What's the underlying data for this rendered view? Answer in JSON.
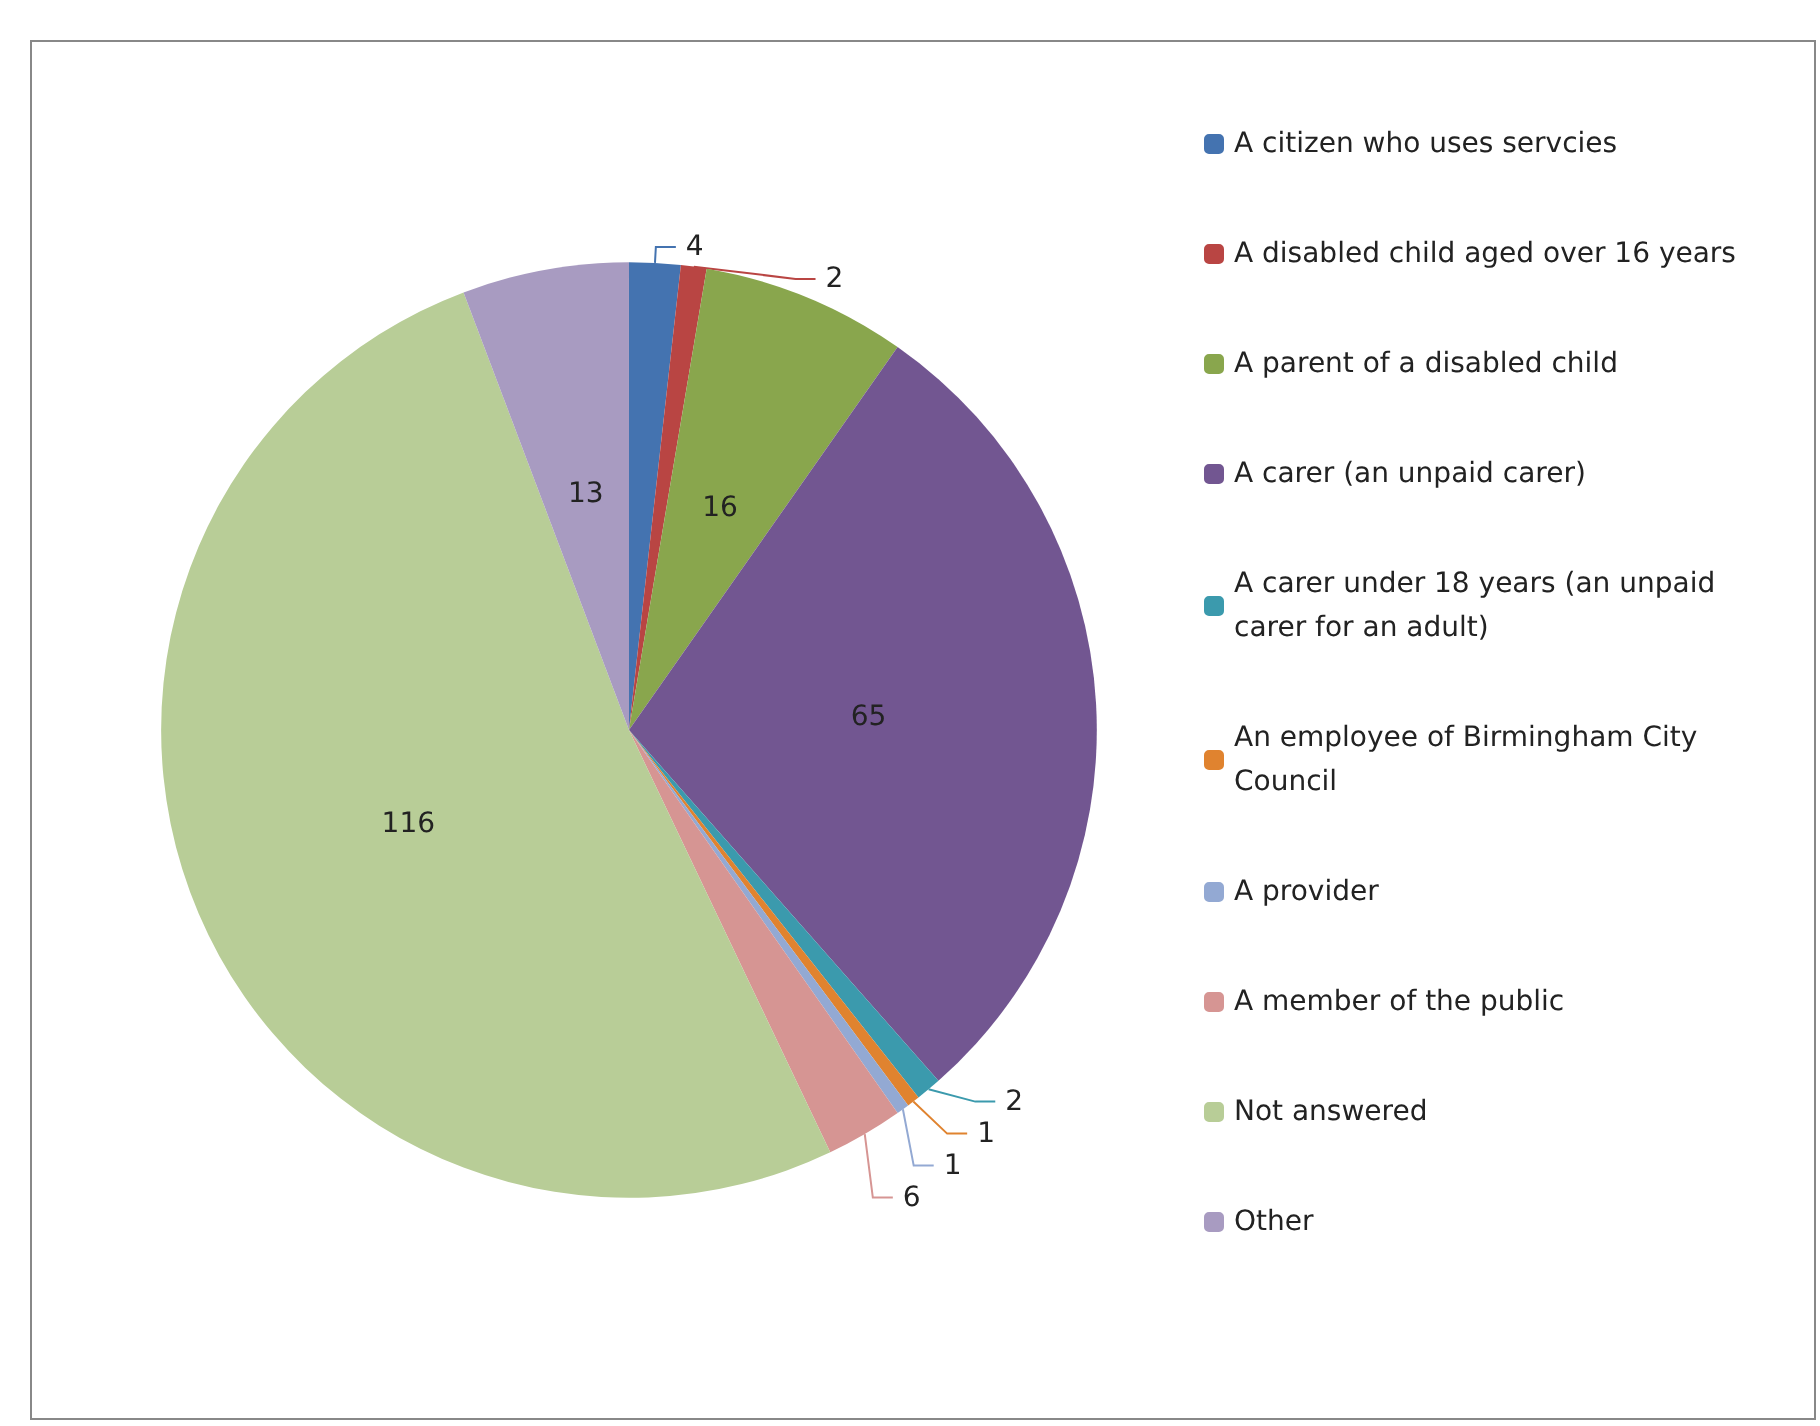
{
  "chart_data": {
    "type": "pie",
    "categories": [
      "A citizen who uses servcies",
      "A disabled child aged over 16 years",
      "A parent of a disabled child",
      "A carer (an unpaid carer)",
      "A carer under 18 years (an unpaid carer for an adult)",
      "An employee of Birmingham City Council",
      "A provider",
      "A member of the public",
      "Not answered",
      "Other"
    ],
    "values": [
      4,
      2,
      16,
      65,
      2,
      1,
      1,
      6,
      116,
      13
    ],
    "colors": [
      "#4473b0",
      "#b94543",
      "#89a64d",
      "#725691",
      "#3b9aad",
      "#e0832f",
      "#93a9d3",
      "#d69593",
      "#b8cd97",
      "#a89bc1"
    ],
    "data_labels": true,
    "legend": "right"
  }
}
